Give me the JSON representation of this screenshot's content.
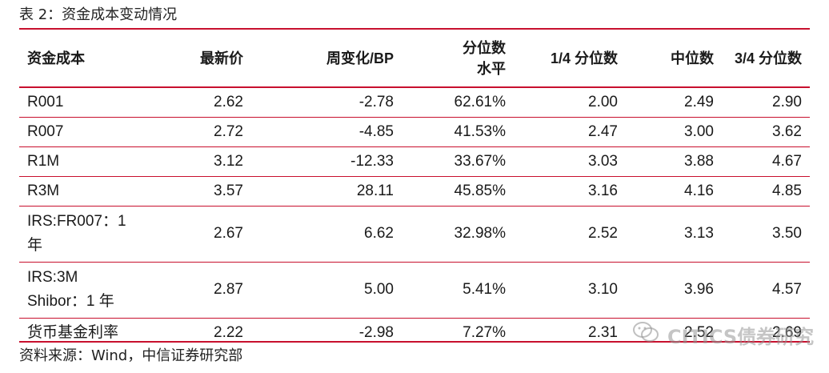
{
  "caption": "表 2：资金成本变动情况",
  "table": {
    "headers": [
      {
        "line1": "资金成本",
        "line2": ""
      },
      {
        "line1": "最新价",
        "line2": ""
      },
      {
        "line1": "周变化/BP",
        "line2": ""
      },
      {
        "line1": "分位数",
        "line2": "水平"
      },
      {
        "line1": "1/4 分位数",
        "line2": ""
      },
      {
        "line1": "中位数",
        "line2": ""
      },
      {
        "line1": "3/4 分位数",
        "line2": ""
      }
    ],
    "rows": [
      {
        "name_line1": "R001",
        "name_line2": "",
        "latest": "2.62",
        "weekly_change": "-2.78",
        "percentile": "62.61%",
        "q1": "2.00",
        "median": "2.49",
        "q3": "2.90"
      },
      {
        "name_line1": "R007",
        "name_line2": "",
        "latest": "2.72",
        "weekly_change": "-4.85",
        "percentile": "41.53%",
        "q1": "2.47",
        "median": "3.00",
        "q3": "3.62"
      },
      {
        "name_line1": "R1M",
        "name_line2": "",
        "latest": "3.12",
        "weekly_change": "-12.33",
        "percentile": "33.67%",
        "q1": "3.03",
        "median": "3.88",
        "q3": "4.67"
      },
      {
        "name_line1": "R3M",
        "name_line2": "",
        "latest": "3.57",
        "weekly_change": "28.11",
        "percentile": "45.85%",
        "q1": "3.16",
        "median": "4.16",
        "q3": "4.85"
      },
      {
        "name_line1": "IRS:FR007：1",
        "name_line2": "年",
        "latest": "2.67",
        "weekly_change": "6.62",
        "percentile": "32.98%",
        "q1": "2.52",
        "median": "3.13",
        "q3": "3.50"
      },
      {
        "name_line1": "IRS:3M",
        "name_line2": "Shibor：1 年",
        "latest": "2.87",
        "weekly_change": "5.00",
        "percentile": "5.41%",
        "q1": "3.10",
        "median": "3.96",
        "q3": "4.57"
      },
      {
        "name_line1": "货币基金利率",
        "name_line2": "",
        "latest": "2.22",
        "weekly_change": "-2.98",
        "percentile": "7.27%",
        "q1": "2.31",
        "median": "2.52",
        "q3": "2.69"
      }
    ]
  },
  "source": "资料来源：Wind，中信证券研究部",
  "watermark": {
    "text": "CITICS债券研究",
    "icon": "wechat-icon"
  },
  "colors": {
    "rule": "#c8102e",
    "text": "#1a1a1a",
    "watermark": "#969696"
  }
}
